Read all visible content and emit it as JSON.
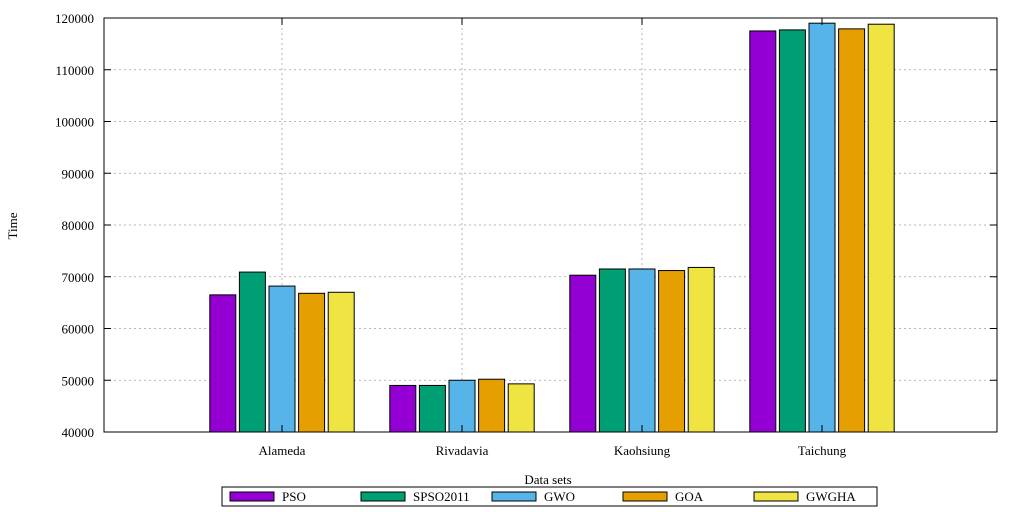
{
  "chart_data": {
    "type": "bar",
    "title": "",
    "xlabel": "Data sets",
    "ylabel": "Time",
    "ylim": [
      40000,
      120000
    ],
    "yticks": [
      40000,
      50000,
      60000,
      70000,
      80000,
      90000,
      100000,
      110000,
      120000
    ],
    "grid": true,
    "legend_position": "bottom",
    "categories": [
      "Alameda",
      "Rivadavia",
      "Kaohsiung",
      "Taichung"
    ],
    "series": [
      {
        "name": "PSO",
        "color": "#9400d3",
        "values": [
          66500,
          49000,
          70300,
          117500
        ]
      },
      {
        "name": "SPSO2011",
        "color": "#009e73",
        "values": [
          70900,
          49000,
          71500,
          117700
        ]
      },
      {
        "name": "GWO",
        "color": "#56b4e9",
        "values": [
          68200,
          50000,
          71500,
          119000
        ]
      },
      {
        "name": "GOA",
        "color": "#e69f00",
        "values": [
          66800,
          50200,
          71200,
          117900
        ]
      },
      {
        "name": "GWGHA",
        "color": "#f0e442",
        "values": [
          67000,
          49300,
          71800,
          118800
        ]
      }
    ]
  }
}
